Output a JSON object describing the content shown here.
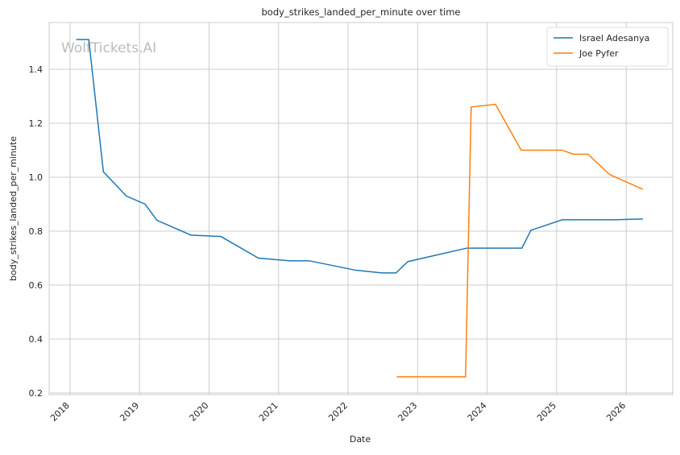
{
  "chart_data": {
    "type": "line",
    "title": "body_strikes_landed_per_minute over time",
    "x_label": "Date",
    "y_label": "body_strikes_landed_per_minute",
    "watermark": "WolfTickets.AI",
    "legend": "upper right",
    "grid": true,
    "xlim": [
      2017.7,
      2026.67
    ],
    "xticks": [
      2018,
      2019,
      2020,
      2021,
      2022,
      2023,
      2024,
      2025,
      2026
    ],
    "ylim": [
      0.194,
      1.573
    ],
    "yticks": [
      0.2,
      0.4,
      0.6,
      0.8,
      {
        "value": 1,
        "label": "1.0"
      },
      1.2,
      1.4
    ],
    "series": [
      {
        "name": "Israel Adesanya",
        "color": "#1f77b4",
        "x": [
          2018.09,
          2018.27,
          2018.48,
          2018.81,
          2019.08,
          2019.25,
          2019.74,
          2020.17,
          2020.71,
          2021.16,
          2021.44,
          2022.11,
          2022.48,
          2022.69,
          2022.86,
          2023.25,
          2023.71,
          2024.5,
          2024.63,
          2025.08,
          2025.8,
          2026.24
        ],
        "values": [
          1.51,
          1.51,
          1.02,
          0.93,
          0.9,
          0.84,
          0.785,
          0.78,
          0.7,
          0.69,
          0.69,
          0.655,
          0.645,
          0.645,
          0.687,
          0.71,
          0.737,
          0.737,
          0.803,
          0.842,
          0.842,
          0.845
        ]
      },
      {
        "name": "Joe Pyfer",
        "color": "#ff7f0e",
        "x": [
          2022.7,
          2023.69,
          2023.77,
          2024.12,
          2024.49,
          2025.08,
          2025.24,
          2025.45,
          2025.76,
          2026.24
        ],
        "values": [
          0.26,
          0.26,
          1.26,
          1.27,
          1.1,
          1.1,
          1.085,
          1.085,
          1.01,
          0.955
        ]
      }
    ]
  }
}
